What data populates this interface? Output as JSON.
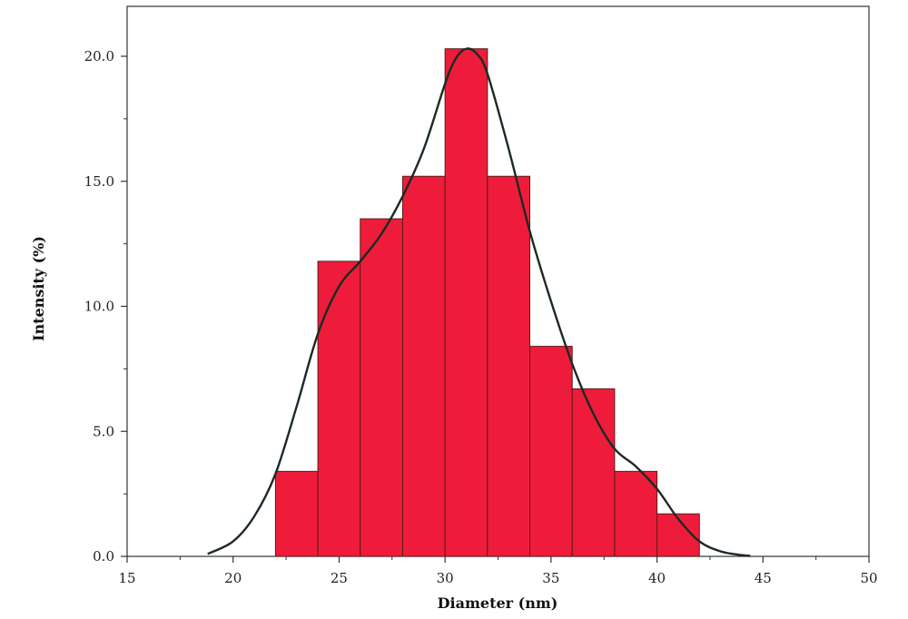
{
  "chart_data": {
    "type": "bar",
    "xlabel": "Diameter (nm)",
    "ylabel": "Intensity (%)",
    "xlim": [
      15,
      50
    ],
    "ylim": [
      0,
      22
    ],
    "x_ticks": [
      15,
      20,
      25,
      30,
      35,
      40,
      45,
      50
    ],
    "x_tick_labels": [
      "15",
      "20",
      "25",
      "30",
      "35",
      "40",
      "45",
      "50"
    ],
    "y_ticks": [
      0,
      5,
      10,
      15,
      20
    ],
    "y_tick_labels": [
      "0.0",
      "5.0",
      "10.0",
      "15.0",
      "20.0"
    ],
    "bins": [
      {
        "x0": 22,
        "x1": 24,
        "value": 3.4
      },
      {
        "x0": 24,
        "x1": 26,
        "value": 11.8
      },
      {
        "x0": 26,
        "x1": 28,
        "value": 13.5
      },
      {
        "x0": 28,
        "x1": 30,
        "value": 15.2
      },
      {
        "x0": 30,
        "x1": 32,
        "value": 20.3
      },
      {
        "x0": 32,
        "x1": 34,
        "value": 15.2
      },
      {
        "x0": 34,
        "x1": 36,
        "value": 8.4
      },
      {
        "x0": 36,
        "x1": 38,
        "value": 6.7
      },
      {
        "x0": 38,
        "x1": 40,
        "value": 3.4
      },
      {
        "x0": 40,
        "x1": 42,
        "value": 1.7
      }
    ],
    "curve": {
      "x": [
        18.8,
        20,
        21,
        22,
        23,
        24,
        25,
        26,
        27,
        28,
        29,
        30,
        30.5,
        31,
        31.5,
        32,
        33,
        34,
        35,
        36,
        37,
        38,
        39,
        40,
        41,
        42,
        43,
        44,
        44.4
      ],
      "y": [
        0.1,
        0.6,
        1.6,
        3.3,
        6.0,
        8.9,
        10.8,
        11.8,
        12.9,
        14.4,
        16.3,
        18.9,
        19.9,
        20.3,
        20.1,
        19.3,
        16.3,
        13.0,
        10.2,
        7.7,
        5.7,
        4.3,
        3.6,
        2.7,
        1.5,
        0.6,
        0.2,
        0.05,
        0.02
      ]
    },
    "colors": {
      "bar_fill": "#ee1c3a",
      "bar_stroke": "#5a1a1a",
      "curve": "#1c2a22",
      "axis": "#333333"
    },
    "grid": false
  }
}
